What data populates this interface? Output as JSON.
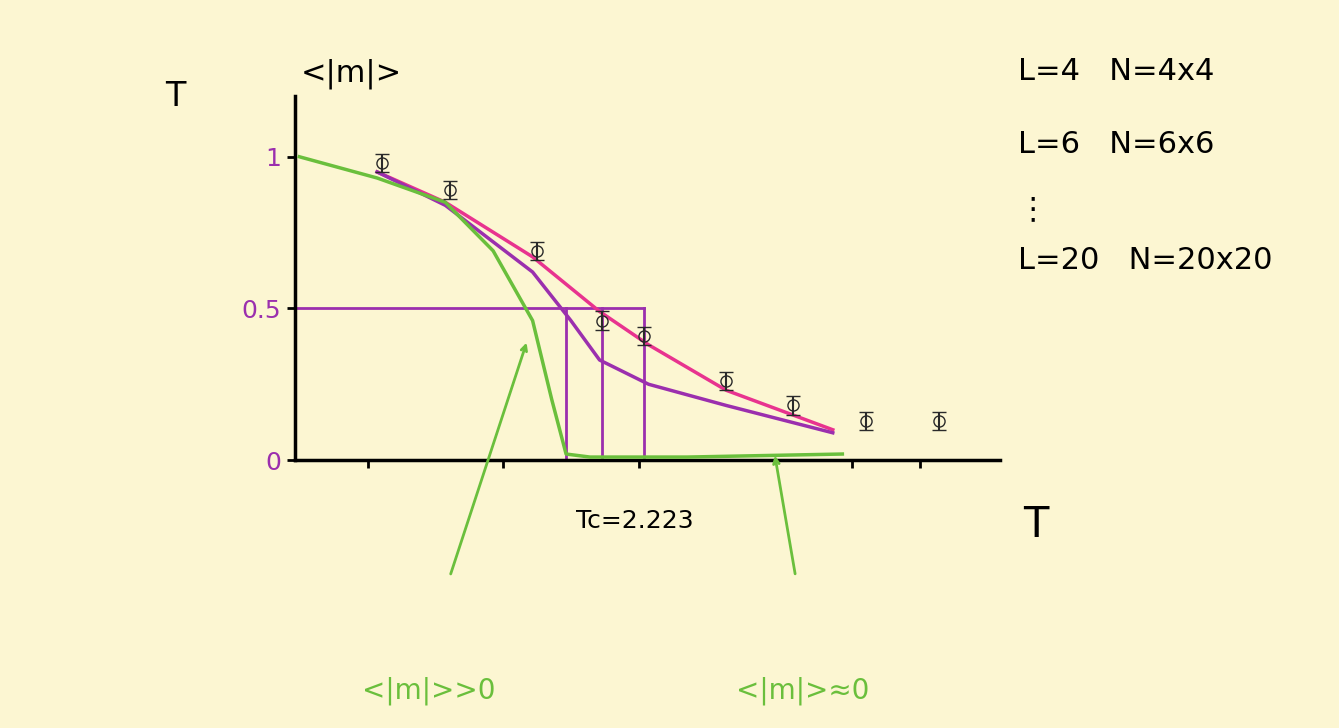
{
  "chart_data": {
    "type": "line",
    "ylabel": "<|m|>",
    "xlabel": "T",
    "annotations": [
      "T",
      "Tc=2.223",
      "<|m|>>0",
      "<|m|>≈0"
    ],
    "notes": [
      "L=4   N=4x4",
      "L=6   N=6x6",
      "⋮",
      "L=20   N=20x20"
    ],
    "xlim": [
      0,
      5.9
    ],
    "ylim": [
      0,
      1.2
    ],
    "xticks": [
      0.61,
      1.74,
      2.88,
      4.66,
      5.23
    ],
    "yticks": [
      0,
      0.5,
      1
    ],
    "tick_labels": "y",
    "grid": false,
    "series": [
      {
        "type": "line",
        "color": "#e8338f",
        "line_style": "solid",
        "x": [
          0.69,
          1.26,
          1.99,
          2.55,
          2.96,
          3.61,
          4.5
        ],
        "values": [
          0.95,
          0.85,
          0.67,
          0.49,
          0.38,
          0.23,
          0.1
        ]
      },
      {
        "type": "line",
        "color": "#9b2fae",
        "line_style": "solid",
        "x": [
          0.69,
          1.26,
          1.99,
          2.31,
          2.55,
          2.96,
          3.61,
          4.5
        ],
        "values": [
          0.95,
          0.84,
          0.62,
          0.46,
          0.33,
          0.25,
          0.18,
          0.09
        ]
      },
      {
        "type": "line",
        "color": "#6abf3c",
        "line_style": "solid",
        "x": [
          0.04,
          0.69,
          1.26,
          1.66,
          1.99,
          2.15,
          2.27,
          2.47,
          3.28,
          4.58
        ],
        "values": [
          1.0,
          0.93,
          0.85,
          0.69,
          0.46,
          0.2,
          0.02,
          0.01,
          0.01,
          0.02
        ]
      },
      {
        "type": "scatter",
        "color": "#2a2a2a",
        "marker": "circle",
        "x": [
          0.73,
          1.3,
          2.03,
          2.57,
          2.92,
          3.61,
          4.17,
          4.78,
          5.39
        ],
        "values": [
          0.98,
          0.89,
          0.69,
          0.46,
          0.41,
          0.26,
          0.18,
          0.13,
          0.13
        ],
        "errors": [
          0.03,
          0.03,
          0.03,
          0.03,
          0.03,
          0.03,
          0.03,
          0.03,
          0.03
        ]
      }
    ],
    "reference_lines": {
      "color": "#9b2fae",
      "y": 0.5,
      "x": [
        2.27,
        2.57,
        2.92
      ]
    }
  }
}
